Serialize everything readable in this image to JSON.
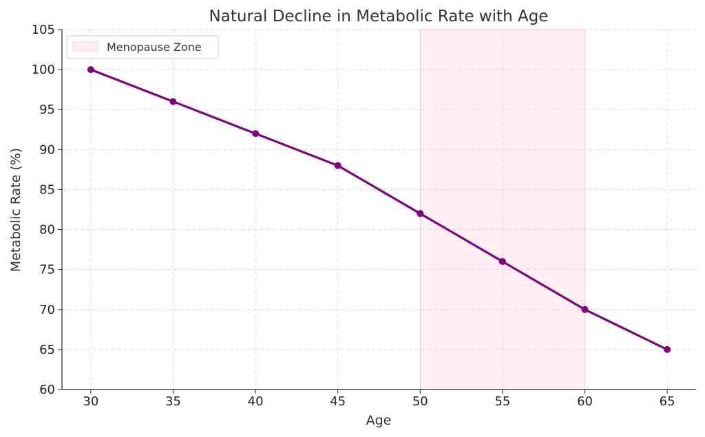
{
  "chart_data": {
    "type": "line",
    "title": "Natural Decline in Metabolic Rate with Age",
    "xlabel": "Age",
    "ylabel": "Metabolic Rate (%)",
    "x": [
      30,
      35,
      40,
      45,
      50,
      55,
      60,
      65
    ],
    "series": [
      {
        "values": [
          100,
          96,
          92,
          88,
          82,
          76,
          70,
          65
        ],
        "color": "#800080"
      }
    ],
    "xticks": [
      30,
      35,
      40,
      45,
      50,
      55,
      60,
      65
    ],
    "yticks": [
      60,
      65,
      70,
      75,
      80,
      85,
      90,
      95,
      100,
      105
    ],
    "xlim": [
      28.25,
      66.75
    ],
    "ylim": [
      60,
      105
    ],
    "grid": true,
    "shaded_region": {
      "label": "Menopause Zone",
      "x_start": 50,
      "x_end": 60,
      "color": "#ffc0cb"
    },
    "legend": {
      "placement": "top-left",
      "entries": [
        "Menopause Zone"
      ]
    }
  }
}
